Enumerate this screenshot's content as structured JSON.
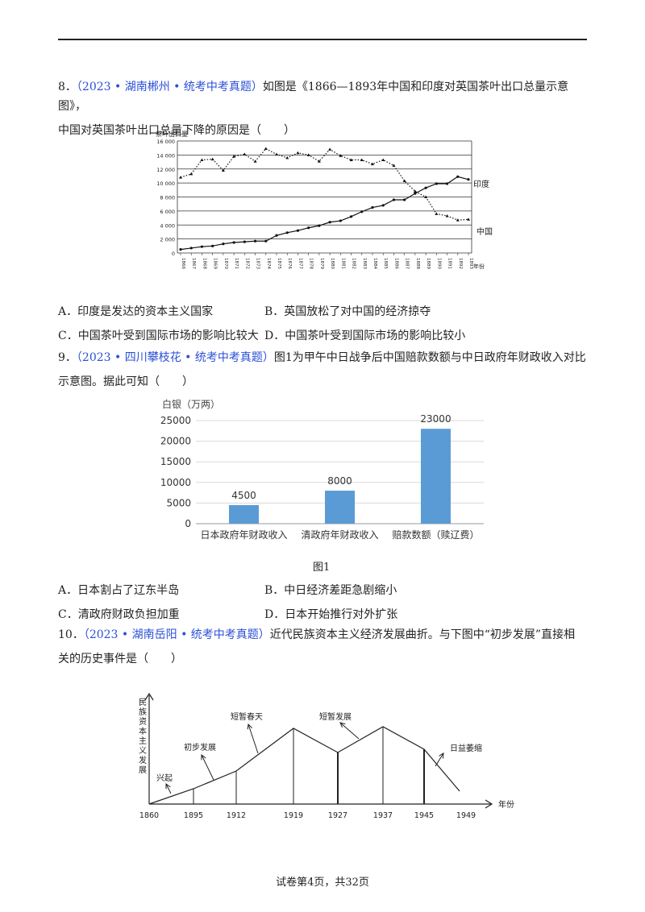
{
  "questions": [
    {
      "number": "8．",
      "source": "（2023 • 湖南郴州 • 统考中考真题）",
      "stem_line1": "如图是《1866—1893年中国和印度对英国茶叶出口总量示意图》，",
      "stem_line2": "中国对英国茶叶出口总量下降的原因是（　　）",
      "options": {
        "A": "A．印度是发达的资本主义国家",
        "B": "B．英国放松了对中国的经济掠夺",
        "C": "C．中国茶叶受到国际市场的影响比较大",
        "D": "D．中国茶叶受到国际市场的影响比较小"
      }
    },
    {
      "number": "9．",
      "source": "（2023 • 四川攀枝花 • 统考中考真题）",
      "stem_line1": "图1为甲午中日战争后中国赔款数额与中日政府年财政收入对比",
      "stem_line2": "示意图。据此可知（　　）",
      "figure_caption": "图1",
      "options": {
        "A": "A．日本割占了辽东半岛",
        "B": "B．中日经济差距急剧缩小",
        "C": "C．清政府财政负担加重",
        "D": "D．日本开始推行对外扩张"
      }
    },
    {
      "number": "10．",
      "source": "（2023 • 湖南岳阳 • 统考中考真题）",
      "stem_line1": "近代民族资本主义经济发展曲折。与下图中“初步发展”直接相",
      "stem_line2": "关的历史事件是（　　）"
    }
  ],
  "footer": "试卷第4页，共32页",
  "chart_data": [
    {
      "type": "line",
      "ylabel": "茶叶出口量",
      "xlabel": "年份",
      "ylim": [
        0,
        16000
      ],
      "yticks": [
        "0",
        "2 000",
        "4 000",
        "6 000",
        "8 000",
        "10 000",
        "12 000",
        "14 000",
        "16 000"
      ],
      "x": [
        1866,
        1867,
        1868,
        1869,
        1870,
        1871,
        1872,
        1873,
        1874,
        1875,
        1876,
        1877,
        1878,
        1879,
        1880,
        1881,
        1882,
        1883,
        1884,
        1885,
        1886,
        1887,
        1888,
        1889,
        1890,
        1891,
        1892,
        1893
      ],
      "series": [
        {
          "name": "印度",
          "style": "solid",
          "values": [
            500,
            700,
            900,
            1000,
            1300,
            1500,
            1600,
            1700,
            1700,
            2500,
            2900,
            3200,
            3600,
            3900,
            4400,
            4600,
            5200,
            5900,
            6500,
            6800,
            7600,
            7600,
            8500,
            9300,
            9900,
            9900,
            10900,
            10500
          ]
        },
        {
          "name": "中国",
          "style": "dotted",
          "values": [
            10800,
            11300,
            13300,
            13400,
            11800,
            13800,
            14100,
            13100,
            14900,
            14100,
            13600,
            14300,
            14000,
            13100,
            14800,
            13900,
            13300,
            13300,
            12700,
            13300,
            12500,
            10300,
            8800,
            8000,
            5600,
            5300,
            4700,
            4800
          ]
        }
      ],
      "grid": true
    },
    {
      "type": "bar",
      "ylabel": "白银（万两）",
      "ylim": [
        0,
        25000
      ],
      "yticks": [
        "0",
        "5000",
        "10000",
        "15000",
        "20000",
        "25000"
      ],
      "categories": [
        "日本政府年财政收入",
        "清政府年财政收入",
        "赔款数额（赎辽费）"
      ],
      "values": [
        4500,
        8000,
        23000
      ],
      "value_labels": [
        "4500",
        "8000",
        "23000"
      ],
      "bar_color": "#5b9bd5",
      "grid": true
    },
    {
      "type": "line",
      "ylabel": "民族资本主义发展",
      "xlabel": "年份",
      "x_labels": [
        "1860",
        "1895",
        "1912",
        "1919",
        "1927",
        "1937",
        "1945",
        "1949"
      ],
      "phase_labels": [
        "兴起",
        "初步发展",
        "短暂春天",
        "短暂发展",
        "日益萎缩"
      ]
    }
  ]
}
